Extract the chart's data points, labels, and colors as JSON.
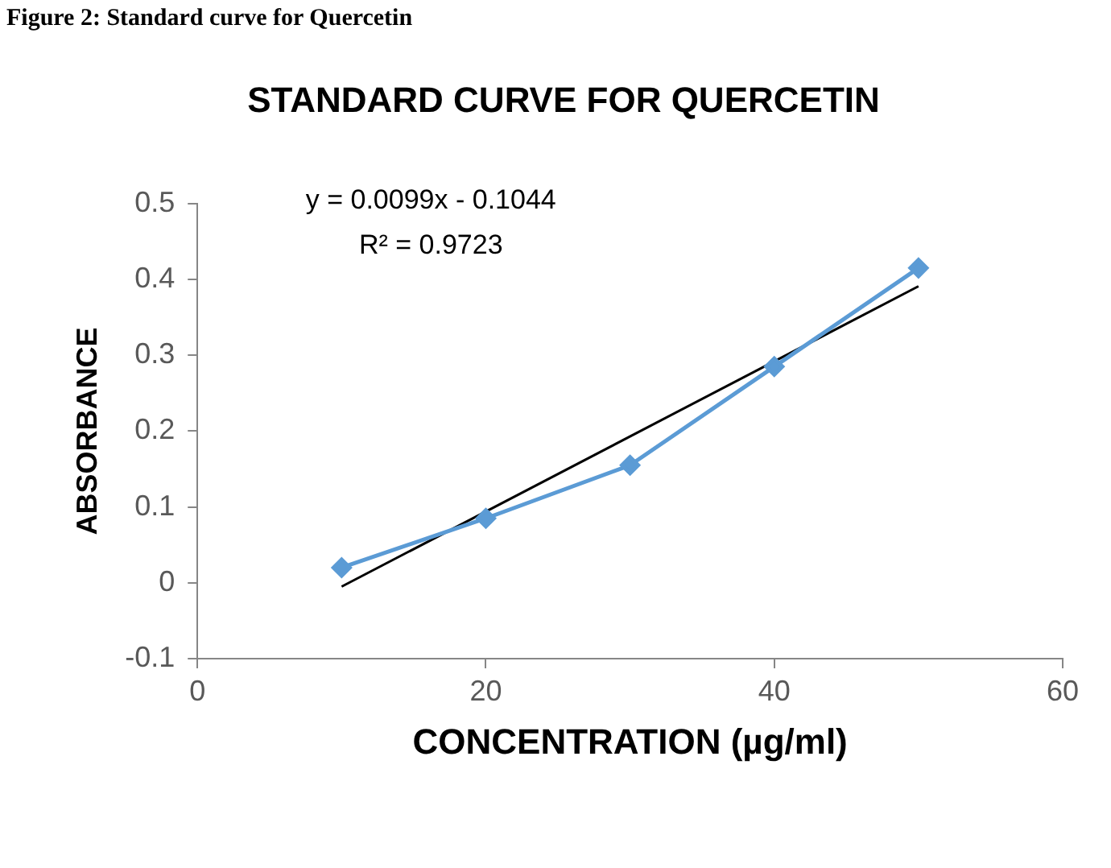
{
  "chart_data": {
    "type": "line",
    "title": "STANDARD CURVE FOR QUERCETIN",
    "xlabel": "CONCENTRATION (µg/ml)",
    "ylabel": "ABSORBANCE",
    "xlim": [
      0,
      60
    ],
    "xticks": [
      0,
      20,
      40,
      60
    ],
    "ylim": [
      -0.1,
      0.5
    ],
    "yticks": [
      -0.1,
      0,
      0.1,
      0.2,
      0.3,
      0.4,
      0.5
    ],
    "grid": false,
    "legend": false,
    "series": [
      {
        "color": "#5b9bd5",
        "x": [
          10,
          20,
          30,
          40,
          50
        ],
        "values": [
          0.02,
          0.085,
          0.155,
          0.285,
          0.415
        ],
        "marker": "diamond"
      },
      {
        "color": "#000000",
        "x": [
          10,
          50
        ],
        "values": [
          -0.005,
          0.391
        ],
        "marker": "none"
      }
    ],
    "annotations": [
      "Figure 2: Standard curve for Quercetin",
      "y = 0.0099x - 0.1044",
      "R² = 0.9723"
    ]
  }
}
